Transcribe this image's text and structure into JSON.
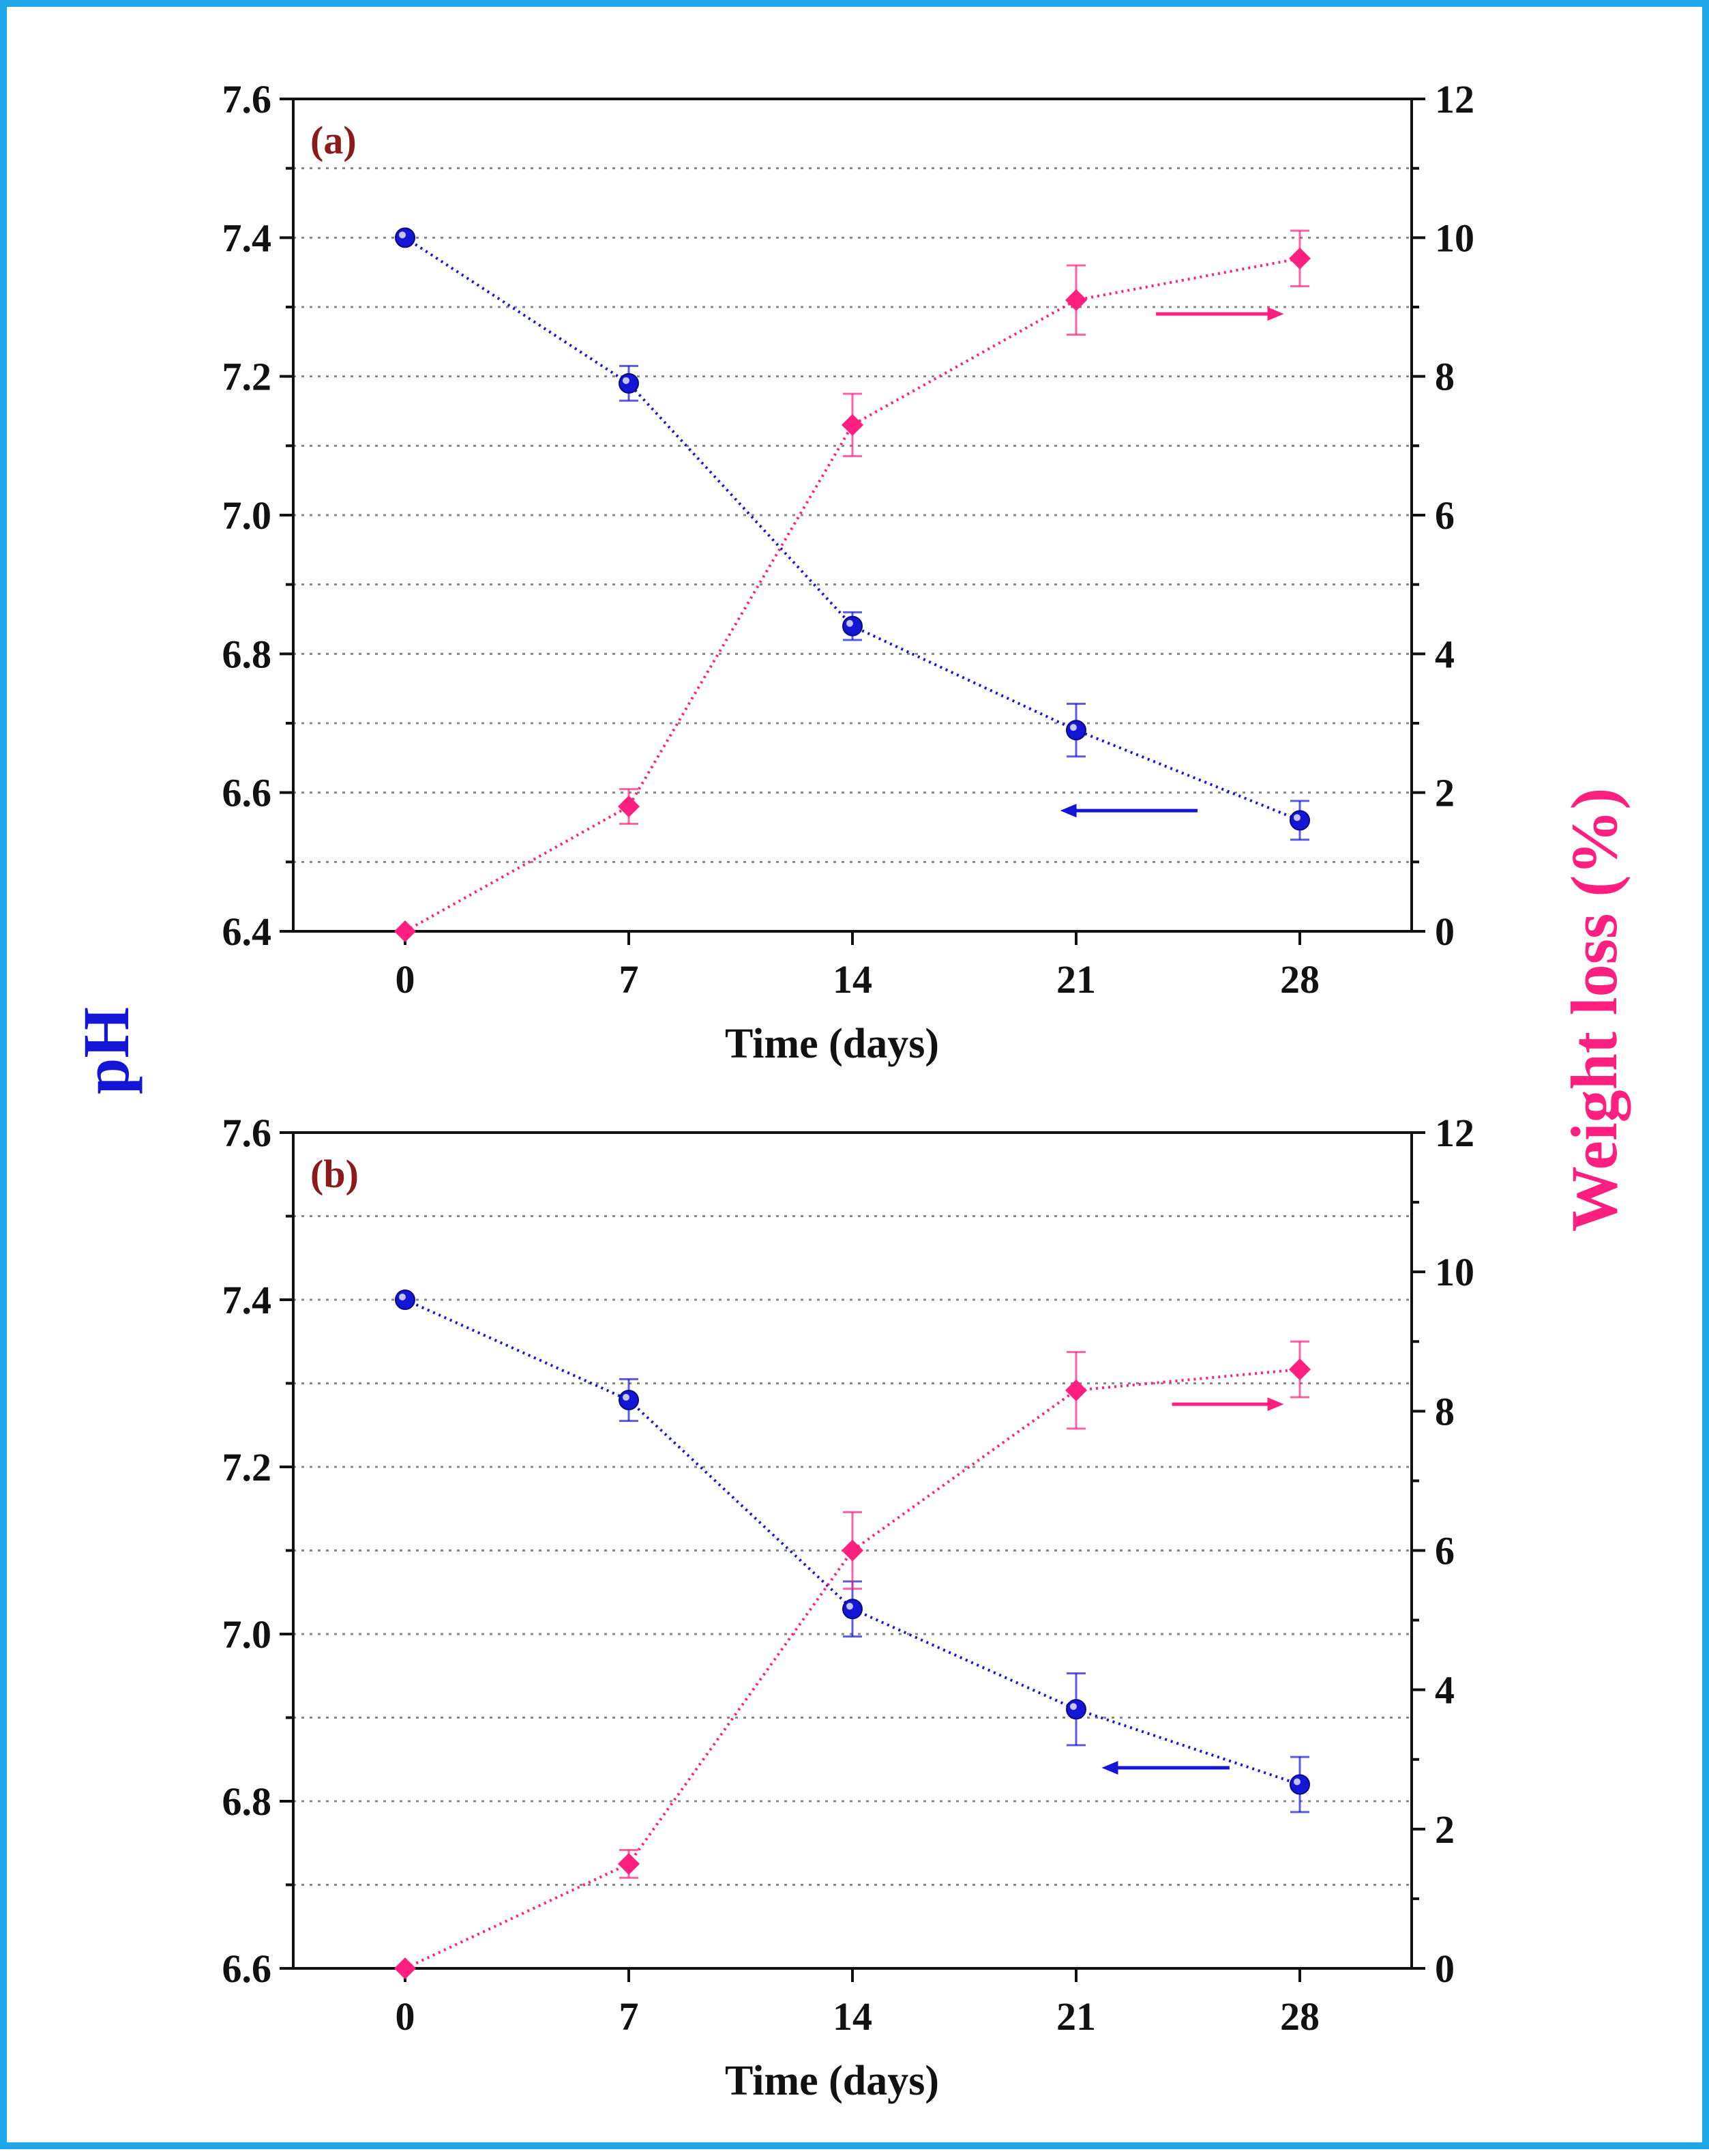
{
  "colors": {
    "frame": "#1ea7e8",
    "ph_series": "#1515d6",
    "weight_series": "#ff1f7f",
    "panel_label": "#8b1a1a",
    "grid": "#888888"
  },
  "shared_labels": {
    "left_axis": "pH",
    "right_axis": "Weight loss (%)"
  },
  "chart_data": [
    {
      "type": "line",
      "panel_label": "(a)",
      "xlabel": "Time (days)",
      "ylabel": "pH",
      "ylabel_right": "Weight loss (%)",
      "x": [
        0,
        7,
        14,
        21,
        28
      ],
      "x_ticks": [
        "0",
        "7",
        "14",
        "21",
        "28"
      ],
      "xlim": [
        -3.5,
        31.5
      ],
      "ylim_left": [
        6.4,
        7.6
      ],
      "y_ticks_left": [
        "6.4",
        "6.6",
        "6.8",
        "7.0",
        "7.2",
        "7.4",
        "7.6"
      ],
      "ylim_right": [
        0,
        12
      ],
      "y_ticks_right": [
        "0",
        "2",
        "4",
        "6",
        "8",
        "10",
        "12"
      ],
      "grid_left": [
        6.5,
        6.6,
        6.7,
        6.8,
        6.9,
        7.0,
        7.1,
        7.2,
        7.3,
        7.4,
        7.5
      ],
      "series": [
        {
          "name": "pH",
          "axis": "left",
          "marker": "sphere",
          "values": [
            7.4,
            7.19,
            6.84,
            6.69,
            6.56
          ],
          "errors": [
            0.0,
            0.025,
            0.02,
            0.038,
            0.028
          ]
        },
        {
          "name": "Weight loss (%)",
          "axis": "right",
          "marker": "diamond",
          "values": [
            0,
            1.8,
            7.3,
            9.1,
            9.7
          ],
          "errors": [
            0,
            0.25,
            0.45,
            0.5,
            0.4
          ]
        }
      ],
      "annotations": [
        {
          "type": "arrow",
          "direction": "left",
          "series": "pH",
          "x_from": 24.8,
          "x_to": 20.5,
          "y_axis": "left",
          "y": 6.574
        },
        {
          "type": "arrow",
          "direction": "right",
          "series": "Weight loss (%)",
          "x_from": 23.5,
          "x_to": 27.5,
          "y_axis": "right",
          "y": 8.9
        }
      ]
    },
    {
      "type": "line",
      "panel_label": "(b)",
      "xlabel": "Time (days)",
      "ylabel": "pH",
      "ylabel_right": "Weight loss (%)",
      "x": [
        0,
        7,
        14,
        21,
        28
      ],
      "x_ticks": [
        "0",
        "7",
        "14",
        "21",
        "28"
      ],
      "xlim": [
        -3.5,
        31.5
      ],
      "ylim_left": [
        6.6,
        7.6
      ],
      "y_ticks_left": [
        "6.6",
        "6.8",
        "7.0",
        "7.2",
        "7.4",
        "7.6"
      ],
      "ylim_right": [
        0,
        12
      ],
      "y_ticks_right": [
        "0",
        "2",
        "4",
        "6",
        "8",
        "10",
        "12"
      ],
      "grid_left": [
        6.7,
        6.8,
        6.9,
        7.0,
        7.1,
        7.2,
        7.3,
        7.4,
        7.5
      ],
      "series": [
        {
          "name": "pH",
          "axis": "left",
          "marker": "sphere",
          "values": [
            7.4,
            7.28,
            7.03,
            6.91,
            6.82
          ],
          "errors": [
            0.0,
            0.025,
            0.033,
            0.043,
            0.033
          ]
        },
        {
          "name": "Weight loss (%)",
          "axis": "right",
          "marker": "diamond",
          "values": [
            0,
            1.5,
            6.0,
            8.3,
            8.6
          ],
          "errors": [
            0,
            0.2,
            0.55,
            0.55,
            0.4
          ]
        }
      ],
      "annotations": [
        {
          "type": "arrow",
          "direction": "left",
          "series": "pH",
          "x_from": 25.8,
          "x_to": 21.8,
          "y_axis": "left",
          "y": 6.84
        },
        {
          "type": "arrow",
          "direction": "right",
          "series": "Weight loss (%)",
          "x_from": 24.0,
          "x_to": 27.5,
          "y_axis": "right",
          "y": 8.1
        }
      ]
    }
  ]
}
